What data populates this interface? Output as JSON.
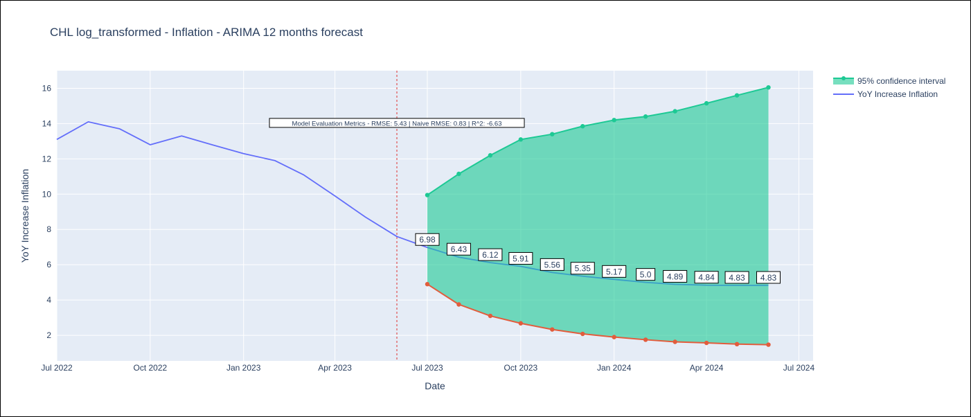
{
  "chart_data": {
    "type": "line",
    "title": "CHL log_transformed - Inflation - ARIMA 12 months forecast",
    "xlabel": "Date",
    "ylabel": "YoY Increase Inflation",
    "xlim": [
      "2022-07-01",
      "2024-07-15"
    ],
    "ylim": [
      0.55,
      17.0
    ],
    "x_ticks": [
      {
        "date": "2022-07-01",
        "label": "Jul 2022"
      },
      {
        "date": "2022-10-01",
        "label": "Oct 2022"
      },
      {
        "date": "2023-01-01",
        "label": "Jan 2023"
      },
      {
        "date": "2023-04-01",
        "label": "Apr 2023"
      },
      {
        "date": "2023-07-01",
        "label": "Jul 2023"
      },
      {
        "date": "2023-10-01",
        "label": "Oct 2023"
      },
      {
        "date": "2024-01-01",
        "label": "Jan 2024"
      },
      {
        "date": "2024-04-01",
        "label": "Apr 2024"
      },
      {
        "date": "2024-07-01",
        "label": "Jul 2024"
      }
    ],
    "y_ticks": [
      2,
      4,
      6,
      8,
      10,
      12,
      14,
      16
    ],
    "grid": true,
    "legend_position": "top-right",
    "vline": {
      "date": "2023-06-01",
      "color": "#e05050",
      "style": "dotted"
    },
    "series": [
      {
        "name": "YoY Increase Inflation",
        "color": "#636efa",
        "x": [
          "2022-07-01",
          "2022-08-01",
          "2022-09-01",
          "2022-10-01",
          "2022-11-01",
          "2022-12-01",
          "2023-01-01",
          "2023-02-01",
          "2023-03-01",
          "2023-04-01",
          "2023-05-01",
          "2023-06-01",
          "2023-07-01"
        ],
        "y": [
          13.1,
          14.1,
          13.7,
          12.8,
          13.3,
          12.8,
          12.3,
          11.9,
          11.1,
          9.9,
          8.7,
          7.6,
          6.98
        ]
      },
      {
        "name": "forecast",
        "color": "#3aa0c8",
        "x": [
          "2023-07-01",
          "2023-08-01",
          "2023-09-01",
          "2023-10-01",
          "2023-11-01",
          "2023-12-01",
          "2024-01-01",
          "2024-02-01",
          "2024-03-01",
          "2024-04-01",
          "2024-05-01",
          "2024-06-01"
        ],
        "y": [
          6.98,
          6.43,
          6.12,
          5.91,
          5.56,
          5.35,
          5.17,
          5.0,
          4.89,
          4.84,
          4.83,
          4.83
        ],
        "labels": [
          "6.98",
          "6.43",
          "6.12",
          "5.91",
          "5.56",
          "5.35",
          "5.17",
          "5.0",
          "4.89",
          "4.84",
          "4.83",
          "4.83"
        ]
      },
      {
        "name": "upper_bound",
        "color": "#1dc994",
        "x": [
          "2023-07-01",
          "2023-08-01",
          "2023-09-01",
          "2023-10-01",
          "2023-11-01",
          "2023-12-01",
          "2024-01-01",
          "2024-02-01",
          "2024-03-01",
          "2024-04-01",
          "2024-05-01",
          "2024-06-01"
        ],
        "y": [
          9.95,
          11.15,
          12.2,
          13.1,
          13.4,
          13.85,
          14.2,
          14.4,
          14.7,
          15.15,
          15.6,
          16.05
        ]
      },
      {
        "name": "lower_bound",
        "color": "#e25c3c",
        "x": [
          "2023-07-01",
          "2023-08-01",
          "2023-09-01",
          "2023-10-01",
          "2023-11-01",
          "2023-12-01",
          "2024-01-01",
          "2024-02-01",
          "2024-03-01",
          "2024-04-01",
          "2024-05-01",
          "2024-06-01"
        ],
        "y": [
          4.9,
          3.75,
          3.1,
          2.68,
          2.33,
          2.08,
          1.9,
          1.75,
          1.63,
          1.57,
          1.5,
          1.47
        ]
      }
    ],
    "confidence_fill_color": "#1dc994",
    "legend": [
      {
        "label": "95% confidence interval",
        "color": "#1dc994",
        "kind": "band"
      },
      {
        "label": "YoY Increase Inflation",
        "color": "#636efa",
        "kind": "line"
      }
    ],
    "annotation": {
      "text": "Model Evaluation Metrics - RMSE: 5.43 | Naive RMSE: 0.83 | R^2: -6.63",
      "x": "2023-06-01",
      "y": 14.0
    }
  }
}
